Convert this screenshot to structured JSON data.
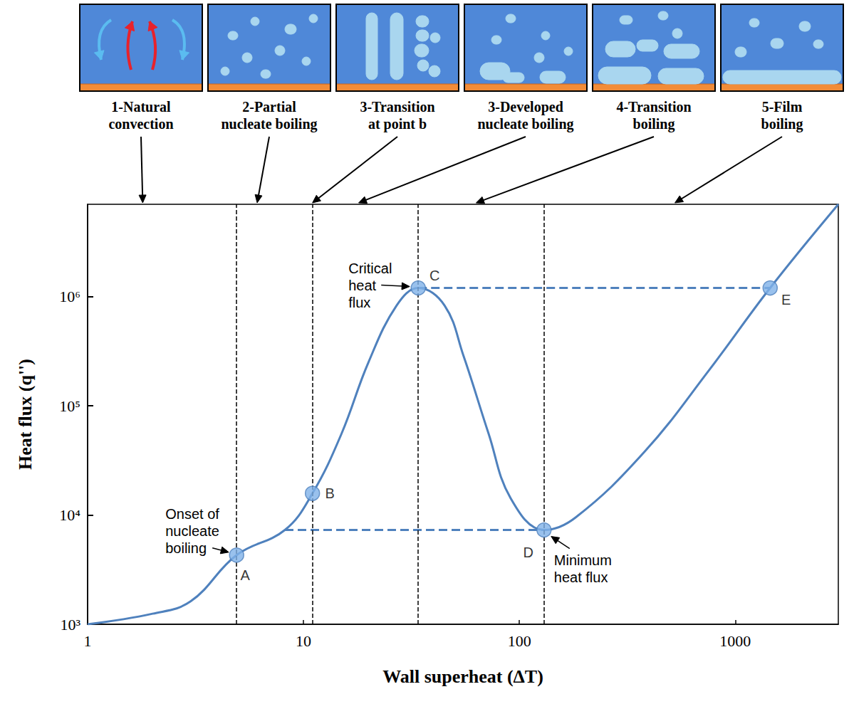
{
  "chart_data": {
    "type": "line",
    "x_label": "Wall superheat (ΔT)",
    "y_label": "Heat flux (q'')",
    "log": true,
    "grid": false,
    "color": "#4f81bd",
    "xlim": [
      1,
      3000
    ],
    "xticks": [
      1,
      10,
      100,
      1000
    ],
    "ylim": [
      1000,
      7000000
    ],
    "yticks": [
      {
        "value": 1000,
        "label": "10³"
      },
      {
        "value": 10000,
        "label": "10⁴"
      },
      {
        "value": 100000,
        "label": "10⁵"
      },
      {
        "value": 1000000,
        "label": "10⁶"
      }
    ],
    "x": [
      1,
      2,
      3,
      4.9,
      8.2,
      11,
      15,
      20,
      27,
      34,
      45,
      55,
      72,
      91,
      130,
      182,
      380,
      760,
      1450,
      3000
    ],
    "values": [
      1000,
      1250,
      1620,
      4300,
      7300,
      15800,
      55600,
      251000,
      830000,
      1200000,
      830000,
      290000,
      55600,
      14300,
      7300,
      9500,
      38000,
      215000,
      1200000,
      7000000
    ],
    "points": [
      {
        "label": "A",
        "x": 4.9,
        "y": 4300
      },
      {
        "label": "B",
        "x": 11,
        "y": 15800
      },
      {
        "label": "C",
        "x": 34,
        "y": 1200000
      },
      {
        "label": "D",
        "x": 130,
        "y": 7300
      },
      {
        "label": "E",
        "x": 1450,
        "y": 1200000
      }
    ],
    "annotations": [
      {
        "text": "Onset of nucleate boiling",
        "point": "A"
      },
      {
        "text": "Critical heat flux",
        "point": "C"
      },
      {
        "text": "Minimum heat flux",
        "point": "D"
      }
    ],
    "vertical_dashed_x": [
      4.9,
      11,
      34,
      130
    ],
    "horizontal_dashed": [
      {
        "x": [
          34,
          1450
        ],
        "y": 1200000
      },
      {
        "x": [
          8.2,
          130
        ],
        "y": 7300
      }
    ],
    "regimes": [
      {
        "label": "1-Natural convection",
        "x": 1.8
      },
      {
        "label": "2-Partial nucleate boiling",
        "x": 6.1
      },
      {
        "label": "3-Transition at point b",
        "x": 11
      },
      {
        "label": "3-Developed nucleate boiling",
        "x": 18
      },
      {
        "label": "4-Transition boiling",
        "x": 63
      },
      {
        "label": "5-Film boiling",
        "x": 525
      }
    ]
  }
}
